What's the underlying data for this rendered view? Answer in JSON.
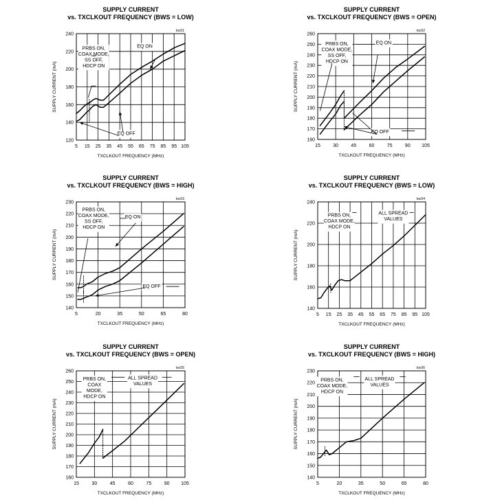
{
  "chart_data": [
    {
      "type": "line",
      "title": "SUPPLY CURRENT",
      "subtitle": "vs. TXCLKOUT FREQUENCY (BWS = LOW)",
      "toc": "toc01",
      "xlabel": "TXCLKOUT FREQUENCY (MHz)",
      "ylabel": "SUPPLY CURRENT (mA)",
      "xlim": [
        5,
        105
      ],
      "ylim": [
        120,
        240
      ],
      "xticks": [
        5,
        15,
        25,
        35,
        45,
        55,
        65,
        75,
        85,
        95,
        105
      ],
      "yticks": [
        120,
        140,
        160,
        180,
        200,
        220,
        240
      ],
      "xtick_labels": [
        "5",
        "15",
        "25",
        "35",
        "45",
        "55",
        "65",
        "75",
        "85",
        "95",
        "105"
      ],
      "ytick_labels": [
        "120",
        "140",
        "160",
        "180",
        "200",
        "220",
        "240"
      ],
      "grid": true,
      "series": [
        {
          "name": "EQ ON",
          "style": "solid",
          "x": [
            5,
            8,
            12,
            15,
            17,
            20,
            23,
            27,
            30,
            35,
            45,
            55,
            65,
            75,
            85,
            95,
            105
          ],
          "y": [
            150,
            153,
            158,
            161,
            162,
            165,
            167,
            165,
            165,
            171,
            183,
            194,
            202,
            209,
            217,
            224,
            229
          ]
        },
        {
          "name": "EQ OFF",
          "style": "solid",
          "x": [
            5,
            8,
            12,
            15,
            17,
            20,
            23,
            27,
            30,
            35,
            45,
            55,
            65,
            75,
            85,
            95,
            105
          ],
          "y": [
            141,
            143,
            148,
            152,
            154,
            158,
            160,
            157,
            157,
            162,
            173,
            184,
            193,
            200,
            209,
            215,
            221
          ]
        },
        {
          "name": "EQ ON (dotted)",
          "style": "dotted",
          "x": [
            17,
            17
          ],
          "y": [
            166,
            149
          ]
        },
        {
          "name": "EQ OFF (dotted)",
          "style": "dotted",
          "x": [
            17,
            17
          ],
          "y": [
            157,
            140
          ]
        }
      ],
      "annotations": [
        {
          "text": [
            "PRBS ON,",
            "COAX MODE,",
            "SS OFF,",
            "HDCP ON"
          ],
          "anchor": [
            21,
            222
          ]
        },
        {
          "text": [
            "EQ ON"
          ],
          "anchor": [
            68,
            224
          ]
        },
        {
          "text": [
            "EQ OFF"
          ],
          "anchor": [
            51,
            126
          ]
        }
      ]
    },
    {
      "type": "line",
      "title": "SUPPLY CURRENT",
      "subtitle": "vs. TXCLKOUT FREQUENCY (BWS = OPEN)",
      "toc": "toc02",
      "xlabel": "TXCLKOUT FREQUENCY (MHz)",
      "ylabel": "SUPPLY CURRENT (mA)",
      "xlim": [
        15,
        105
      ],
      "ylim": [
        160,
        260
      ],
      "xticks": [
        15,
        30,
        45,
        60,
        75,
        90,
        105
      ],
      "yticks": [
        160,
        170,
        180,
        190,
        200,
        210,
        220,
        230,
        240,
        250,
        260
      ],
      "xtick_labels": [
        "15",
        "30",
        "45",
        "60",
        "75",
        "90",
        "105"
      ],
      "ytick_labels": [
        "160",
        "170",
        "180",
        "190",
        "200",
        "210",
        "220",
        "230",
        "240",
        "250",
        "260"
      ],
      "grid": true,
      "series": [
        {
          "name": "EQ ON",
          "style": "solid",
          "x": [
            17,
            25,
            30,
            34,
            37
          ],
          "y": [
            173,
            185,
            193,
            201,
            206
          ]
        },
        {
          "name": "EQ ON",
          "style": "solid",
          "x": [
            37,
            50,
            60,
            70,
            80,
            90,
            104
          ],
          "y": [
            180,
            195,
            206,
            218,
            228,
            236,
            248
          ]
        },
        {
          "name": "EQ OFF",
          "style": "solid",
          "x": [
            17,
            25,
            30,
            34,
            37
          ],
          "y": [
            165,
            177,
            184,
            192,
            196
          ]
        },
        {
          "name": "EQ OFF",
          "style": "solid",
          "x": [
            37,
            50,
            60,
            70,
            80,
            90,
            104
          ],
          "y": [
            169,
            183,
            193,
            205,
            215,
            225,
            238
          ]
        },
        {
          "name": "EQ ON (dotted)",
          "style": "dotted",
          "x": [
            37,
            37
          ],
          "y": [
            206,
            180
          ]
        },
        {
          "name": "EQ OFF (dotted)",
          "style": "dotted",
          "x": [
            37,
            37
          ],
          "y": [
            196,
            169
          ]
        }
      ],
      "annotations": [
        {
          "text": [
            "PRBS ON,",
            "COAX MODE,",
            "SS OFF,",
            "HDCP ON"
          ],
          "anchor": [
            31,
            249
          ]
        },
        {
          "text": [
            "EQ ON"
          ],
          "anchor": [
            70,
            250
          ]
        },
        {
          "text": [
            "EQ OFF"
          ],
          "anchor": [
            67,
            166
          ]
        }
      ]
    },
    {
      "type": "line",
      "title": "SUPPLY CURRENT",
      "subtitle": "vs. TXCLKOUT FREQUENCY (BWS = HIGH)",
      "toc": "toc03",
      "xlabel": "TXCLKOUT FREQUENCY (MHz)",
      "ylabel": "SUPPLY CURRENT (mA)",
      "xlim": [
        5,
        80
      ],
      "ylim": [
        140,
        230
      ],
      "xticks": [
        5,
        20,
        35,
        50,
        65,
        80
      ],
      "yticks": [
        140,
        150,
        160,
        170,
        180,
        190,
        200,
        210,
        220,
        230
      ],
      "xtick_labels": [
        "5",
        "20",
        "35",
        "50",
        "65",
        "80"
      ],
      "ytick_labels": [
        "140",
        "150",
        "160",
        "170",
        "180",
        "190",
        "200",
        "210",
        "220",
        "230"
      ],
      "grid": true,
      "series": [
        {
          "name": "EQ ON",
          "style": "solid",
          "x": [
            6,
            8,
            10,
            12,
            14,
            16,
            20,
            25,
            30,
            35,
            50,
            65,
            79
          ],
          "y": [
            157,
            157,
            158,
            160,
            161,
            162,
            166,
            169,
            171,
            174,
            190,
            205,
            220
          ]
        },
        {
          "name": "EQ OFF",
          "style": "solid",
          "x": [
            6,
            8,
            10,
            12,
            14,
            16,
            20,
            25,
            30,
            35,
            50,
            65,
            79
          ],
          "y": [
            147,
            147,
            148,
            149,
            150,
            151,
            155,
            158,
            160,
            163,
            178,
            194,
            209
          ]
        },
        {
          "name": "EQ ON (dotted)",
          "style": "dotted",
          "x": [
            10,
            10
          ],
          "y": [
            167,
            152
          ]
        },
        {
          "name": "EQ OFF (dotted)",
          "style": "dotted",
          "x": [
            10,
            10
          ],
          "y": [
            154,
            144
          ]
        }
      ],
      "annotations": [
        {
          "text": [
            "PRBS ON,",
            "COAX MODE,",
            "SS OFF,",
            "HDCP ON"
          ],
          "anchor": [
            17,
            222
          ]
        },
        {
          "text": [
            "EQ ON"
          ],
          "anchor": [
            44,
            216
          ]
        },
        {
          "text": [
            "EQ OFF"
          ],
          "anchor": [
            57,
            157
          ]
        }
      ]
    },
    {
      "type": "line",
      "title": "SUPPLY CURRENT",
      "subtitle": "vs. TXCLKOUT FREQUENCY (BWS = LOW)",
      "toc": "toc04",
      "xlabel": "TXCLKOUT FREQUENCY (MHz)",
      "ylabel": "SUPPLY CURRENT (mA)",
      "xlim": [
        5,
        105
      ],
      "ylim": [
        140,
        240
      ],
      "xticks": [
        5,
        15,
        25,
        35,
        45,
        55,
        65,
        75,
        85,
        95,
        105
      ],
      "yticks": [
        140,
        160,
        180,
        200,
        220,
        240
      ],
      "xtick_labels": [
        "5",
        "15",
        "25",
        "35",
        "45",
        "55",
        "65",
        "75",
        "85",
        "95",
        "105"
      ],
      "ytick_labels": [
        "140",
        "160",
        "180",
        "200",
        "220",
        "240"
      ],
      "grid": true,
      "series": [
        {
          "name": "ALL SPREAD VALUES",
          "style": "solid",
          "x": [
            5,
            8,
            11,
            14,
            16,
            18,
            21,
            24,
            27,
            30,
            35,
            45,
            55,
            65,
            75,
            85,
            95,
            105
          ],
          "y": [
            149,
            150,
            155,
            159,
            161,
            157,
            162,
            166,
            167,
            166,
            166,
            174,
            182,
            191,
            199,
            208,
            218,
            228
          ]
        },
        {
          "name": "ALL SPREAD VALUES (dotted)",
          "style": "dotted",
          "x": [
            17,
            17
          ],
          "y": [
            163,
            155
          ]
        }
      ],
      "annotations": [
        {
          "text": [
            "PRBS ON,",
            "COAX MODE,",
            "HDCP ON"
          ],
          "anchor": [
            25,
            226
          ]
        },
        {
          "text": [
            "ALL SPREAD",
            "VALUES"
          ],
          "anchor": [
            75,
            228
          ]
        }
      ]
    },
    {
      "type": "line",
      "title": "SUPPLY CURRENT",
      "subtitle": "vs. TXCLKOUT FREQUENCY (BWS = OPEN)",
      "toc": "toc05",
      "xlabel": "TXCLKOUT FREQUENCY (MHz)",
      "ylabel": "SUPPLY CURRENT (mA)",
      "xlim": [
        15,
        105
      ],
      "ylim": [
        160,
        260
      ],
      "xticks": [
        15,
        30,
        45,
        60,
        75,
        90,
        105
      ],
      "yticks": [
        160,
        170,
        180,
        190,
        200,
        210,
        220,
        230,
        240,
        250,
        260
      ],
      "xtick_labels": [
        "15",
        "30",
        "45",
        "60",
        "75",
        "90",
        "105"
      ],
      "ytick_labels": [
        "160",
        "170",
        "180",
        "190",
        "200",
        "210",
        "220",
        "230",
        "240",
        "250",
        "260"
      ],
      "grid": true,
      "series": [
        {
          "name": "ALL SPREAD VALUES",
          "style": "solid",
          "x": [
            18,
            25,
            30,
            34,
            37
          ],
          "y": [
            173,
            183,
            192,
            198,
            205
          ]
        },
        {
          "name": "ALL SPREAD VALUES",
          "style": "solid",
          "x": [
            37,
            45,
            55,
            65,
            75,
            85,
            95,
            104
          ],
          "y": [
            178,
            185,
            194,
            205,
            216,
            227,
            238,
            248
          ]
        },
        {
          "name": "ALL SPREAD VALUES (dotted)",
          "style": "dotted",
          "x": [
            37,
            37
          ],
          "y": [
            205,
            178
          ]
        }
      ],
      "annotations": [
        {
          "text": [
            "PRBS ON,",
            "COAX",
            "MODE,",
            "HDCP ON"
          ],
          "anchor": [
            30,
            251
          ]
        },
        {
          "text": [
            "ALL SPREAD",
            "VALUES"
          ],
          "anchor": [
            70,
            252
          ]
        }
      ]
    },
    {
      "type": "line",
      "title": "SUPPLY CURRENT",
      "subtitle": "vs. TXCLKOUT FREQUENCY (BWS = HIGH)",
      "toc": "toc06",
      "xlabel": "TXCLKOUT FREQUENCY (MHz)",
      "ylabel": "SUPPLY CURRENT (mA)",
      "xlim": [
        5,
        80
      ],
      "ylim": [
        140,
        230
      ],
      "xticks": [
        5,
        20,
        35,
        50,
        65,
        80
      ],
      "yticks": [
        140,
        150,
        160,
        170,
        180,
        190,
        200,
        210,
        220,
        230
      ],
      "xtick_labels": [
        "5",
        "20",
        "35",
        "50",
        "65",
        "80"
      ],
      "ytick_labels": [
        "140",
        "150",
        "160",
        "170",
        "180",
        "190",
        "200",
        "210",
        "220",
        "230"
      ],
      "grid": true,
      "series": [
        {
          "name": "ALL SPREAD VALUES",
          "style": "solid",
          "x": [
            5,
            7,
            9,
            11,
            13,
            15,
            17,
            20,
            25,
            30,
            35,
            50,
            65,
            79
          ],
          "y": [
            156,
            157,
            160,
            163,
            159,
            160,
            162,
            165,
            170,
            171,
            173,
            190,
            206,
            220
          ]
        },
        {
          "name": "ALL SPREAD VALUES (dotted)",
          "style": "dotted",
          "x": [
            10,
            10
          ],
          "y": [
            166,
            158
          ]
        }
      ],
      "annotations": [
        {
          "text": [
            "PRBS ON,",
            "COAX MODE,",
            "HDCP ON"
          ],
          "anchor": [
            15,
            221
          ]
        },
        {
          "text": [
            "ALL SPREAD",
            "VALUES"
          ],
          "anchor": [
            48,
            222
          ]
        }
      ]
    }
  ]
}
